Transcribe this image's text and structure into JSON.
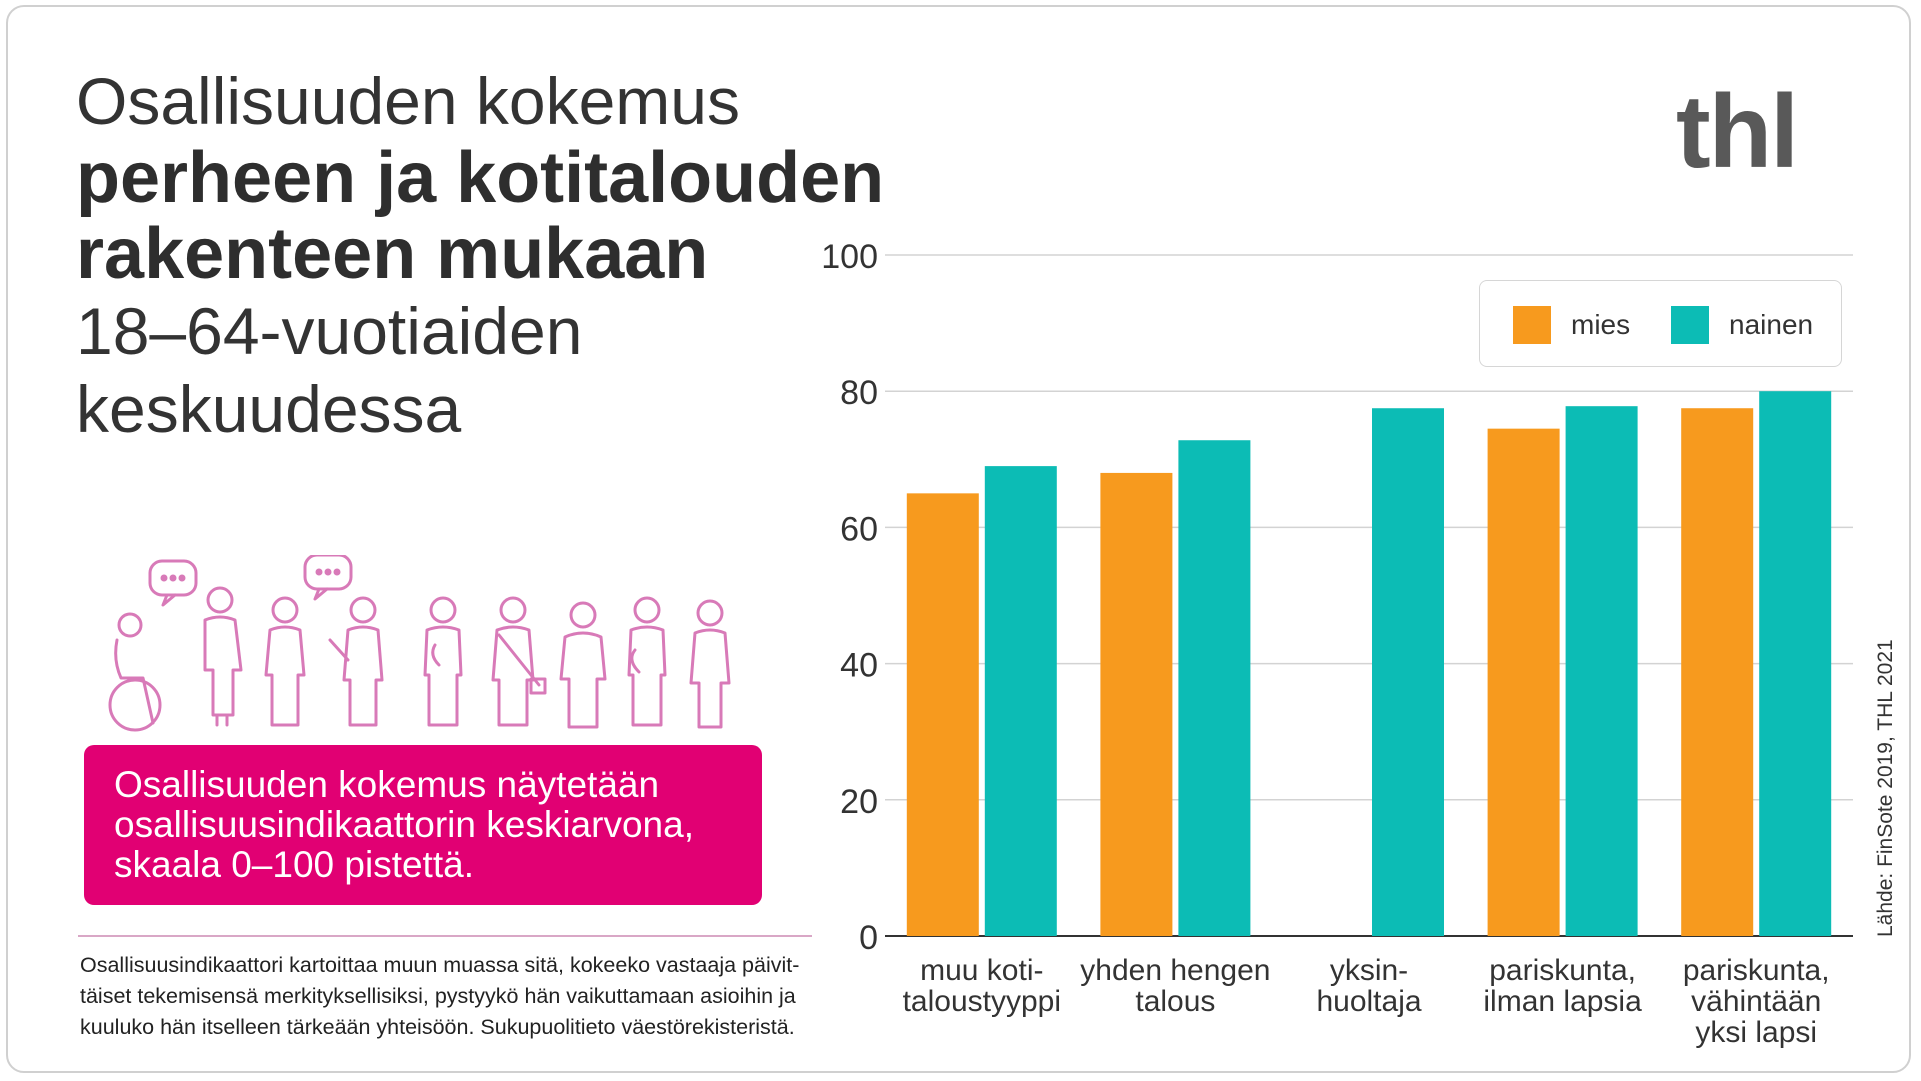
{
  "title": {
    "line1": "Osallisuuden kokemus",
    "line2": "perheen ja kotitalouden",
    "line3": "rakenteen mukaan",
    "line4": "18–64-vuotiaiden",
    "line5": "keskuudessa"
  },
  "logo": "thl",
  "info_box": {
    "line1": "Osallisuuden kokemus näytetään",
    "line2": "osallisuusindikaattorin keskiarvona,",
    "line3": "skaala 0–100 pistettä."
  },
  "footnote": {
    "line1": "Osallisuusindikaattori kartoittaa muun muassa sitä, kokeeko vastaaja päivit-",
    "line2": "täiset tekemisensä merkityksellisiksi, pystyykö hän vaikuttamaan asioihin ja",
    "line3": "kuuluko hän itselleen tärkeään yhteisöön. Sukupuolitieto väestörekisteristä."
  },
  "source": "Lähde: FinSote 2019, THL 2021",
  "colors": {
    "mies": "#f79a1e",
    "nainen": "#0cbcb5",
    "accent": "#e10073",
    "people_icons": "#d87ab8"
  },
  "icons": [
    "wheelchair-user-icon",
    "speech-bubble-icon",
    "person-icon"
  ],
  "chart_data": {
    "type": "bar",
    "title": "Osallisuuden kokemus perheen ja kotitalouden rakenteen mukaan 18–64-vuotiaiden keskuudessa",
    "categories": [
      [
        "muu koti-",
        "taloustyyppi"
      ],
      [
        "yhden hengen",
        "talous"
      ],
      [
        "yksin-",
        "huoltaja"
      ],
      [
        "pariskunta,",
        "ilman lapsia"
      ],
      [
        "pariskunta,",
        "vähintään",
        "yksi lapsi"
      ]
    ],
    "series": [
      {
        "name": "mies",
        "values": [
          65,
          68,
          null,
          74.5,
          77.5
        ]
      },
      {
        "name": "nainen",
        "values": [
          69,
          72.8,
          77.5,
          77.8,
          80
        ]
      }
    ],
    "ylim": [
      0,
      100
    ],
    "yticks": [
      0,
      20,
      40,
      60,
      80,
      100
    ],
    "xlabel": "",
    "ylabel": "",
    "grid": true,
    "legend": "top-right"
  }
}
